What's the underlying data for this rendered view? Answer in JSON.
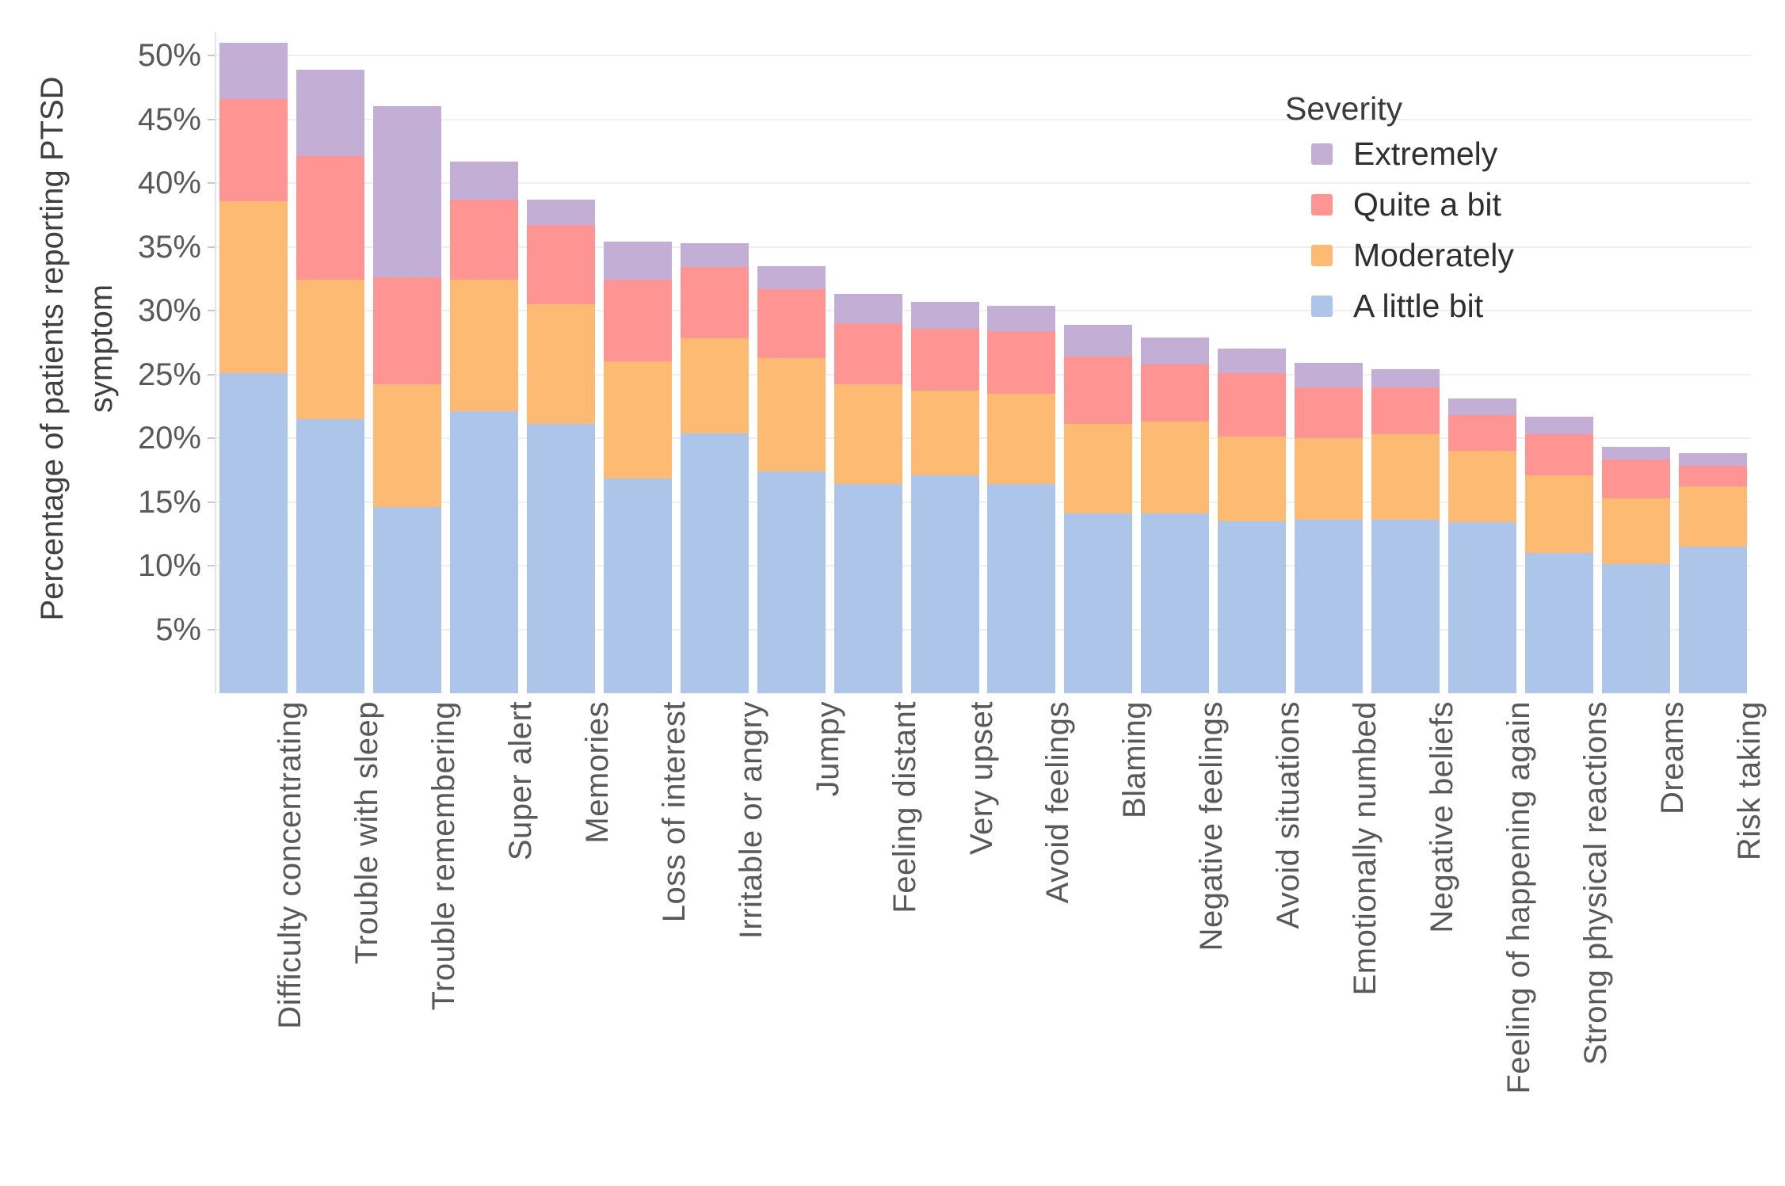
{
  "chart_data": {
    "type": "bar",
    "stacked": true,
    "title": "",
    "ylabel": "Percentage of patients reporting PTSD symptom",
    "ylabel_lines": [
      "Percentage of patients reporting PTSD",
      "symptom"
    ],
    "xlabel": "",
    "ylim": [
      0,
      52
    ],
    "grid": "horizontal, every 5%",
    "yticks": {
      "values": [
        5,
        10,
        15,
        20,
        25,
        30,
        35,
        40,
        45,
        50
      ],
      "labels": [
        "5%",
        "10%",
        "15%",
        "20%",
        "25%",
        "30%",
        "35%",
        "40%",
        "45%",
        "50%"
      ]
    },
    "categories": [
      "Difficulty concentrating",
      "Trouble with sleep",
      "Trouble remembering",
      "Super alert",
      "Memories",
      "Loss of interest",
      "Irritable or angry",
      "Jumpy",
      "Feeling distant",
      "Very upset",
      "Avoid feelings",
      "Blaming",
      "Negative feelings",
      "Avoid situations",
      "Emotionally numbed",
      "Negative beliefs",
      "Feeling of happening again",
      "Strong physical reactions",
      "Dreams",
      "Risk taking"
    ],
    "series": [
      {
        "name": "A little bit",
        "color": "#adc5e8",
        "values": [
          25.1,
          21.5,
          14.6,
          22.1,
          21.1,
          16.8,
          20.4,
          17.4,
          16.4,
          17.1,
          16.4,
          14.1,
          14.1,
          13.5,
          13.6,
          13.6,
          13.4,
          11.0,
          10.1,
          11.5
        ]
      },
      {
        "name": "Moderately",
        "color": "#fdba72",
        "values": [
          13.5,
          10.9,
          9.6,
          10.3,
          9.4,
          9.2,
          7.4,
          8.9,
          7.8,
          6.6,
          7.1,
          7.0,
          7.2,
          6.6,
          6.4,
          6.7,
          5.6,
          6.1,
          5.2,
          4.7
        ]
      },
      {
        "name": "Quite a bit",
        "color": "#fe9593",
        "values": [
          8.0,
          9.7,
          8.4,
          6.3,
          6.2,
          6.4,
          5.6,
          5.4,
          4.8,
          4.9,
          4.9,
          5.3,
          4.5,
          5.0,
          4.0,
          3.7,
          2.8,
          3.2,
          3.0,
          1.6
        ]
      },
      {
        "name": "Extremely",
        "color": "#c3aed6",
        "values": [
          4.4,
          6.8,
          13.4,
          3.0,
          2.0,
          3.0,
          1.9,
          1.8,
          2.3,
          2.1,
          2.0,
          2.5,
          2.1,
          1.9,
          1.9,
          1.4,
          1.3,
          1.4,
          1.0,
          1.0
        ]
      }
    ],
    "stack_totals": [
      51.0,
      48.9,
      46.0,
      41.7,
      38.7,
      35.4,
      35.3,
      33.5,
      31.3,
      30.7,
      30.4,
      28.9,
      27.9,
      27.0,
      25.9,
      25.4,
      23.1,
      21.7,
      19.3,
      18.8
    ],
    "legend": {
      "title": "Severity",
      "position": "upper right inside plot",
      "items": [
        {
          "label": "Extremely",
          "color": "#c3aed6"
        },
        {
          "label": "Quite a bit",
          "color": "#fe9593"
        },
        {
          "label": "Moderately",
          "color": "#fdba72"
        },
        {
          "label": "A little bit",
          "color": "#adc5e8"
        }
      ]
    },
    "colors_ui": {
      "grid": "#efefef",
      "axis": "#e4e4e4",
      "tick": "#c9c9c9",
      "tick_text": "#595959",
      "title_text": "#404040"
    }
  }
}
